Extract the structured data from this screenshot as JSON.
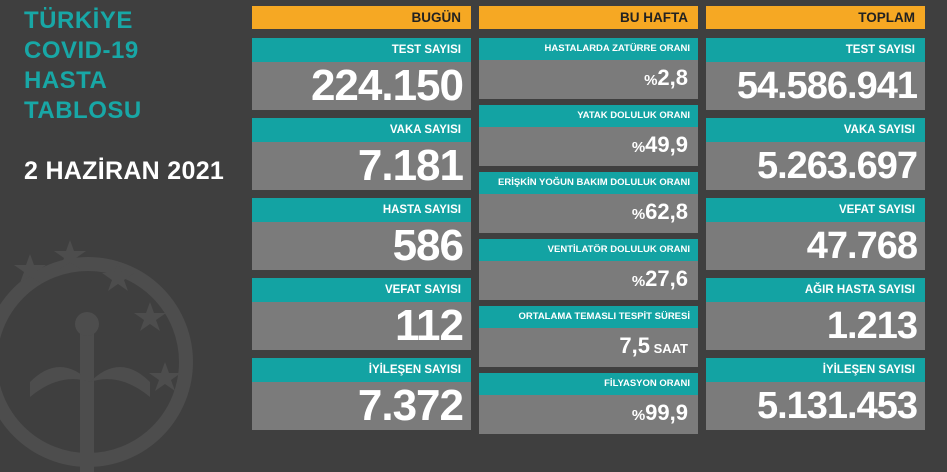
{
  "title_lines": [
    "TÜRKİYE",
    "COVID-19",
    "HASTA",
    "TABLOSU"
  ],
  "date": "2 HAZİRAN 2021",
  "colors": {
    "background": "#3f3f3f",
    "accent_teal": "#13a3a3",
    "header_orange": "#f6a823",
    "value_gray": "#7b7b7b"
  },
  "today": {
    "header": "BUGÜN",
    "items": [
      {
        "label": "TEST SAYISI",
        "value": "224.150"
      },
      {
        "label": "VAKA SAYISI",
        "value": "7.181"
      },
      {
        "label": "HASTA SAYISI",
        "value": "586"
      },
      {
        "label": "VEFAT SAYISI",
        "value": "112"
      },
      {
        "label": "İYİLEŞEN SAYISI",
        "value": "7.372"
      }
    ]
  },
  "week": {
    "header": "BU HAFTA",
    "items": [
      {
        "label": "HASTALARDA ZATÜRRE ORANI",
        "prefix": "%",
        "value": "2,8",
        "suffix": ""
      },
      {
        "label": "YATAK DOLULUK ORANI",
        "prefix": "%",
        "value": "49,9",
        "suffix": ""
      },
      {
        "label": "ERİŞKİN YOĞUN BAKIM DOLULUK ORANI",
        "prefix": "%",
        "value": "62,8",
        "suffix": ""
      },
      {
        "label": "VENTİLATÖR DOLULUK ORANI",
        "prefix": "%",
        "value": "27,6",
        "suffix": ""
      },
      {
        "label": "ORTALAMA TEMASLI TESPİT SÜRESİ",
        "prefix": "",
        "value": "7,5",
        "suffix": " SAAT"
      },
      {
        "label": "FİLYASYON ORANI",
        "prefix": "%",
        "value": "99,9",
        "suffix": ""
      }
    ]
  },
  "total": {
    "header": "TOPLAM",
    "items": [
      {
        "label": "TEST SAYISI",
        "value": "54.586.941"
      },
      {
        "label": "VAKA SAYISI",
        "value": "5.263.697"
      },
      {
        "label": "VEFAT SAYISI",
        "value": "47.768"
      },
      {
        "label": "AĞIR HASTA SAYISI",
        "value": "1.213"
      },
      {
        "label": "İYİLEŞEN SAYISI",
        "value": "5.131.453"
      }
    ]
  },
  "emblem_icon": "ministry-of-health-emblem-icon"
}
